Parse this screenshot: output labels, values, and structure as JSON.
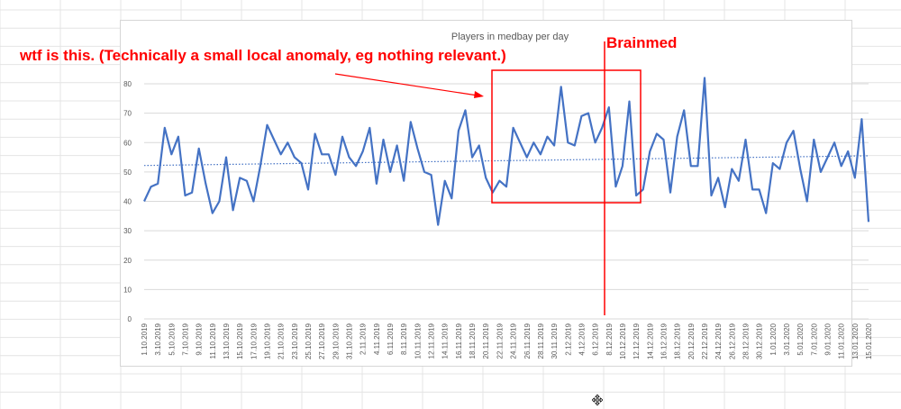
{
  "chart_data": {
    "type": "line",
    "title": "Players in medbay per day",
    "xlabel": "",
    "ylabel": "",
    "ylim": [
      0,
      80
    ],
    "yticks": [
      0,
      10,
      20,
      30,
      40,
      50,
      60,
      70,
      80
    ],
    "grid": "horizontal",
    "legend": "none",
    "x_labels": [
      "1.10.2019",
      "3.10.2019",
      "5.10.2019",
      "7.10.2019",
      "9.10.2019",
      "11.10.2019",
      "13.10.2019",
      "15.10.2019",
      "17.10.2019",
      "19.10.2019",
      "21.10.2019",
      "23.10.2019",
      "25.10.2019",
      "27.10.2019",
      "29.10.2019",
      "31.10.2019",
      "2.11.2019",
      "4.11.2019",
      "6.11.2019",
      "8.11.2019",
      "10.11.2019",
      "12.11.2019",
      "14.11.2019",
      "16.11.2019",
      "18.11.2019",
      "20.11.2019",
      "22.11.2019",
      "24.11.2019",
      "26.11.2019",
      "28.11.2019",
      "30.11.2019",
      "2.12.2019",
      "4.12.2019",
      "6.12.2019",
      "8.12.2019",
      "10.12.2019",
      "12.12.2019",
      "14.12.2019",
      "16.12.2019",
      "18.12.2019",
      "20.12.2019",
      "22.12.2019",
      "24.12.2019",
      "26.12.2019",
      "28.12.2019",
      "30.12.2019",
      "1.01.2020",
      "3.01.2020",
      "5.01.2020",
      "7.01.2020",
      "9.01.2020",
      "11.01.2020",
      "13.01.2020",
      "15.01.2020"
    ],
    "series": [
      {
        "values": [
          40,
          45,
          46,
          65,
          56,
          62,
          42,
          43,
          58,
          46,
          36,
          40,
          55,
          37,
          48,
          47,
          40,
          52,
          66,
          61,
          56,
          60,
          55,
          53,
          44,
          63,
          56,
          56,
          49,
          62,
          55,
          52,
          57,
          65,
          46,
          61,
          50,
          59,
          47,
          67,
          58,
          50,
          49,
          32,
          47,
          41,
          64,
          71,
          55,
          59,
          48,
          43,
          47,
          45,
          65,
          60,
          55,
          60,
          56,
          62,
          59,
          79,
          60,
          59,
          69,
          70,
          60,
          65,
          72,
          45,
          52,
          74,
          42,
          44,
          57,
          63,
          61,
          43,
          62,
          71,
          52,
          52,
          82,
          42,
          48,
          38,
          51,
          47,
          61,
          44,
          44,
          36,
          53,
          51,
          60,
          64,
          51,
          40,
          61,
          50,
          55,
          60,
          52,
          57,
          48,
          68,
          33
        ],
        "color": "#4472c4"
      }
    ],
    "trendline": {
      "from": 52.2,
      "to": 55.5,
      "color": "#4472c4"
    },
    "annotations": {
      "note": "wtf is this. (Technically a small local anomaly, eg nothing relevant.)",
      "brainmed": "Brainmed",
      "color": "#ff0000"
    }
  },
  "cursor": {
    "icon": "move-cursor-icon"
  }
}
